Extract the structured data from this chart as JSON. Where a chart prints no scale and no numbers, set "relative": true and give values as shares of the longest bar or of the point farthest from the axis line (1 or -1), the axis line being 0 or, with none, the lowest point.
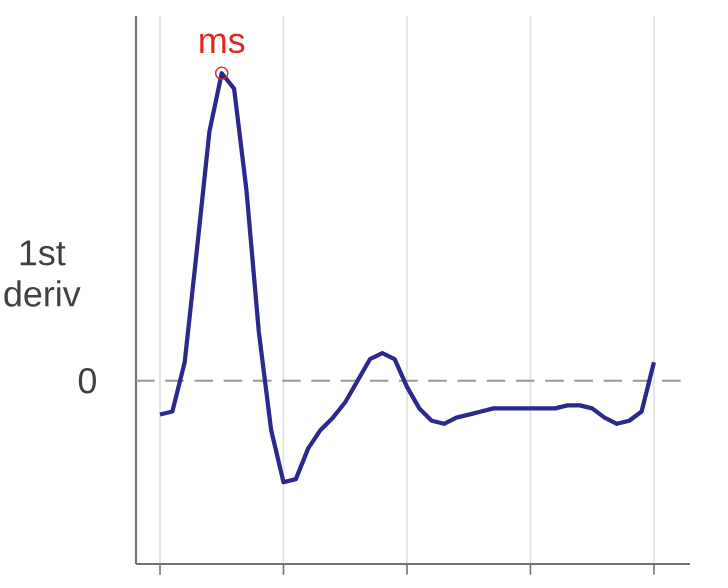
{
  "chart_data": {
    "type": "line",
    "relative": true,
    "ylabel": "1st deriv",
    "categories": [
      null,
      null,
      null,
      null,
      null,
      null,
      null,
      null,
      null,
      null,
      null,
      null,
      null,
      null,
      null,
      null,
      null,
      null,
      null,
      null,
      null,
      null,
      null,
      null,
      null,
      null,
      null,
      null,
      null,
      null,
      null,
      null,
      null,
      null,
      null,
      null,
      null,
      null,
      null,
      null,
      null
    ],
    "series": [
      {
        "color": "#2b2a8c",
        "values": [
          -0.11,
          -0.1,
          0.06,
          0.43,
          0.81,
          1,
          0.95,
          0.62,
          0.16,
          -0.16,
          -0.33,
          -0.32,
          -0.22,
          -0.16,
          -0.12,
          -0.07,
          0.0,
          0.07,
          0.09,
          0.07,
          -0.02,
          -0.09,
          -0.13,
          -0.14,
          -0.12,
          -0.11,
          -0.1,
          -0.09,
          -0.09,
          -0.09,
          -0.09,
          -0.09,
          -0.09,
          -0.08,
          -0.08,
          -0.09,
          -0.12,
          -0.14,
          -0.13,
          -0.1,
          0.06
        ]
      }
    ],
    "grid": "x",
    "marker": "none",
    "line_style": "solid",
    "ref_lines": [
      {
        "axis": "y",
        "value": 0,
        "label": "0",
        "color": "#999999",
        "line_style": "dashed"
      }
    ],
    "annotations": [
      {
        "text": "ms",
        "y": 1
      }
    ]
  }
}
